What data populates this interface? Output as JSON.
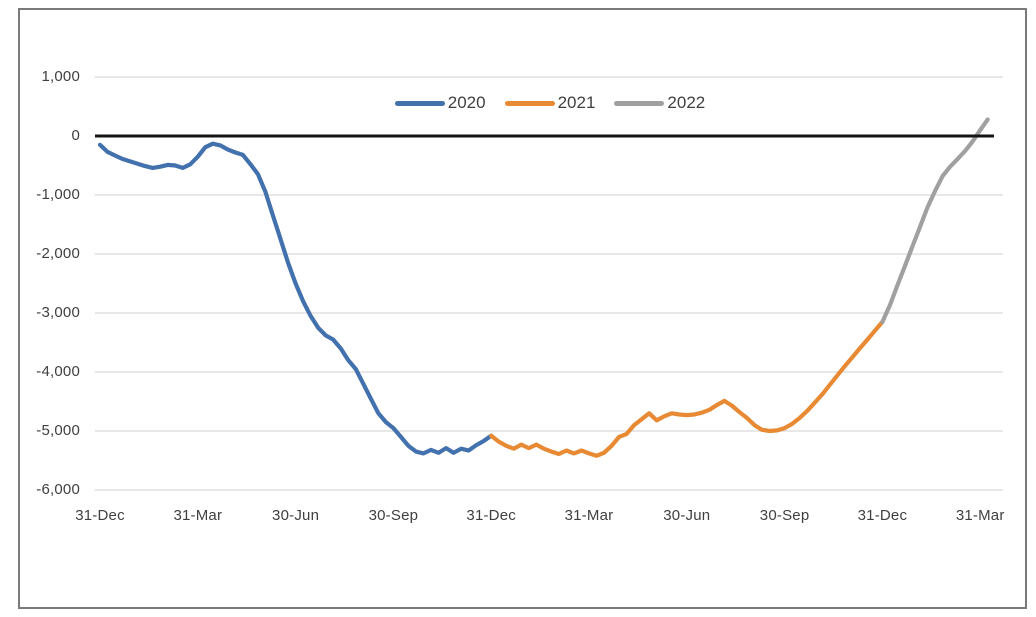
{
  "canvas": {
    "background": "#ffffff",
    "border_color": "#7a7a7a"
  },
  "chart_data": {
    "type": "line",
    "title": "",
    "xlabel": "",
    "ylabel": "",
    "grid": true,
    "gridline_color": "#d9d9d9",
    "zero_line_color": "#141414",
    "text_color": "#404040",
    "legend_position": "top-center",
    "ylim": [
      -6000,
      1000
    ],
    "y_axis_ticks": [
      {
        "value": 1000,
        "label": "1,000"
      },
      {
        "value": 0,
        "label": "0"
      },
      {
        "value": -1000,
        "label": "-1,000"
      },
      {
        "value": -2000,
        "label": "-2,000"
      },
      {
        "value": -3000,
        "label": "-3,000"
      },
      {
        "value": -4000,
        "label": "-4,000"
      },
      {
        "value": -5000,
        "label": "-5,000"
      },
      {
        "value": -6000,
        "label": "-6,000"
      }
    ],
    "x_axis_tick_labels": [
      "31-Dec",
      "31-Mar",
      "30-Jun",
      "30-Sep",
      "31-Dec",
      "31-Mar",
      "30-Jun",
      "30-Sep",
      "31-Dec",
      "31-Mar"
    ],
    "weeks_per_tick": 13,
    "series": [
      {
        "name": "2020",
        "color": "#4271AE",
        "start_week": 0,
        "values": [
          -150,
          -270,
          -330,
          -390,
          -430,
          -470,
          -510,
          -540,
          -520,
          -490,
          -500,
          -540,
          -480,
          -350,
          -190,
          -130,
          -160,
          -230,
          -280,
          -320,
          -480,
          -650,
          -950,
          -1350,
          -1750,
          -2150,
          -2500,
          -2800,
          -3050,
          -3250,
          -3380,
          -3450,
          -3600,
          -3800,
          -3950,
          -4200,
          -4450,
          -4700,
          -4850,
          -4950,
          -5100,
          -5250,
          -5350,
          -5380,
          -5320,
          -5370,
          -5290,
          -5370,
          -5300,
          -5330,
          -5240,
          -5170,
          -5080
        ]
      },
      {
        "name": "2021",
        "color": "#E78A33",
        "start_week": 52,
        "values": [
          -5080,
          -5180,
          -5250,
          -5300,
          -5230,
          -5290,
          -5230,
          -5300,
          -5350,
          -5390,
          -5330,
          -5380,
          -5330,
          -5380,
          -5420,
          -5370,
          -5250,
          -5100,
          -5050,
          -4900,
          -4800,
          -4700,
          -4820,
          -4750,
          -4700,
          -4720,
          -4730,
          -4720,
          -4690,
          -4640,
          -4560,
          -4490,
          -4570,
          -4680,
          -4780,
          -4900,
          -4980,
          -5000,
          -4990,
          -4950,
          -4880,
          -4780,
          -4660,
          -4520,
          -4380,
          -4220,
          -4060,
          -3900,
          -3750,
          -3600,
          -3450,
          -3300,
          -3150
        ]
      },
      {
        "name": "2022",
        "color": "#A0A0A0",
        "start_week": 104,
        "values": [
          -3150,
          -2870,
          -2530,
          -2200,
          -1870,
          -1540,
          -1210,
          -930,
          -680,
          -520,
          -390,
          -250,
          -90,
          100,
          280
        ]
      }
    ]
  }
}
